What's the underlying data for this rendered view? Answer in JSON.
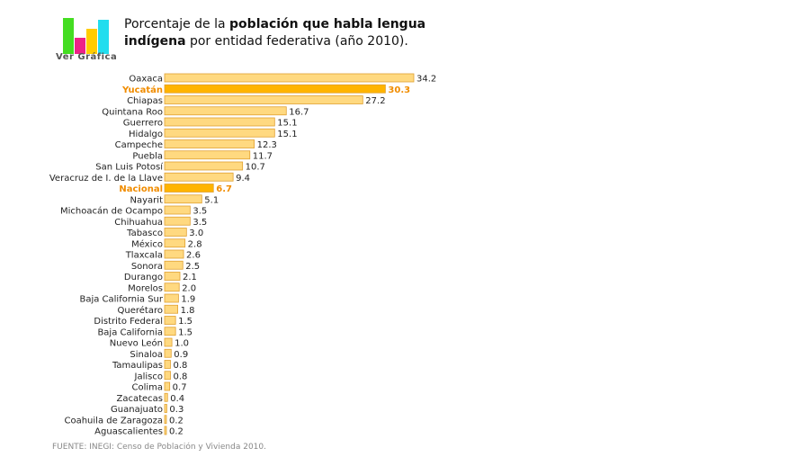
{
  "header": {
    "logo_text": "Ver Gráfica",
    "title_prefix": "Porcentaje de la ",
    "title_bold": "población que habla lengua indígena",
    "title_suffix": " por entidad federativa (año 2010)."
  },
  "source": "FUENTE: INEGI: Censo de Población y Vivienda 2010.",
  "colors": {
    "bar_fill": "#ffd980",
    "bar_stroke": "#e0a030",
    "highlight_fill": "#ffb400",
    "highlight_text": "#f08c00",
    "logo_green": "#44dd22",
    "logo_magenta": "#ee2288",
    "logo_yellow": "#ffcc00",
    "logo_cyan": "#22ddee"
  },
  "chart_data": {
    "type": "bar",
    "orientation": "horizontal",
    "categories": [
      "Oaxaca",
      "Yucatán",
      "Chiapas",
      "Quintana Roo",
      "Guerrero",
      "Hidalgo",
      "Campeche",
      "Puebla",
      "San Luis Potosí",
      "Veracruz de I. de la Llave",
      "Nacional",
      "Nayarit",
      "Michoacán de Ocampo",
      "Chihuahua",
      "Tabasco",
      "México",
      "Tlaxcala",
      "Sonora",
      "Durango",
      "Morelos",
      "Baja California Sur",
      "Querétaro",
      "Distrito Federal",
      "Baja California",
      "Nuevo León",
      "Sinaloa",
      "Tamaulipas",
      "Jalisco",
      "Colima",
      "Zacatecas",
      "Guanajuato",
      "Coahuila de Zaragoza",
      "Aguascalientes"
    ],
    "values": [
      34.2,
      30.3,
      27.2,
      16.7,
      15.1,
      15.1,
      12.3,
      11.7,
      10.7,
      9.4,
      6.7,
      5.1,
      3.5,
      3.5,
      3.0,
      2.8,
      2.6,
      2.5,
      2.1,
      2.0,
      1.9,
      1.8,
      1.5,
      1.5,
      1.0,
      0.9,
      0.8,
      0.8,
      0.7,
      0.4,
      0.3,
      0.2,
      0.2
    ],
    "value_labels": [
      "34.2",
      "30.3",
      "27.2",
      "16.7",
      "15.1",
      "15.1",
      "12.3",
      "11.7",
      "10.7",
      "9.4",
      "6.7",
      "5.1",
      "3.5",
      "3.5",
      "3.0",
      "2.8",
      "2.6",
      "2.5",
      "2.1",
      "2.0",
      "1.9",
      "1.8",
      "1.5",
      "1.5",
      "1.0",
      "0.9",
      "0.8",
      "0.8",
      "0.7",
      "0.4",
      "0.3",
      "0.2",
      "0.2"
    ],
    "highlighted": [
      "Yucatán",
      "Nacional"
    ],
    "xlim": [
      0,
      34.2
    ],
    "grid": false,
    "legend": "none"
  }
}
